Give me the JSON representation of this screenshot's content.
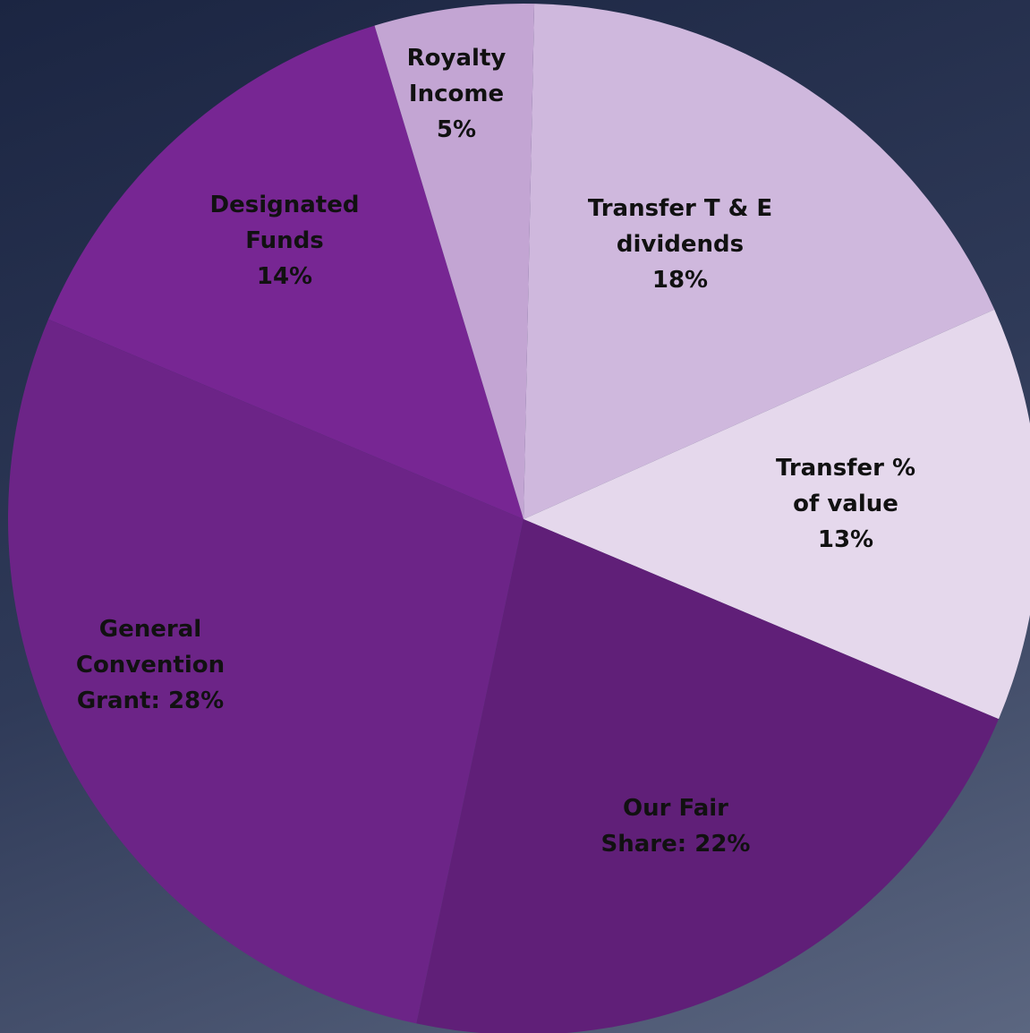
{
  "chart_data": {
    "type": "pie",
    "categories": [
      "Transfer T & E dividends",
      "Transfer % of value",
      "Our Fair Share:",
      "General Convention Grant:",
      "Designated Funds",
      "Royalty Income"
    ],
    "values": [
      18,
      13,
      22,
      28,
      14,
      5
    ],
    "value_labels": [
      "18%",
      "13%",
      "22%",
      "28%",
      "14%",
      "5%"
    ],
    "colors": [
      "#cfb8dd",
      "#e5d8ec",
      "#601f78",
      "#6c2487",
      "#772693",
      "#c3a5d3"
    ]
  }
}
